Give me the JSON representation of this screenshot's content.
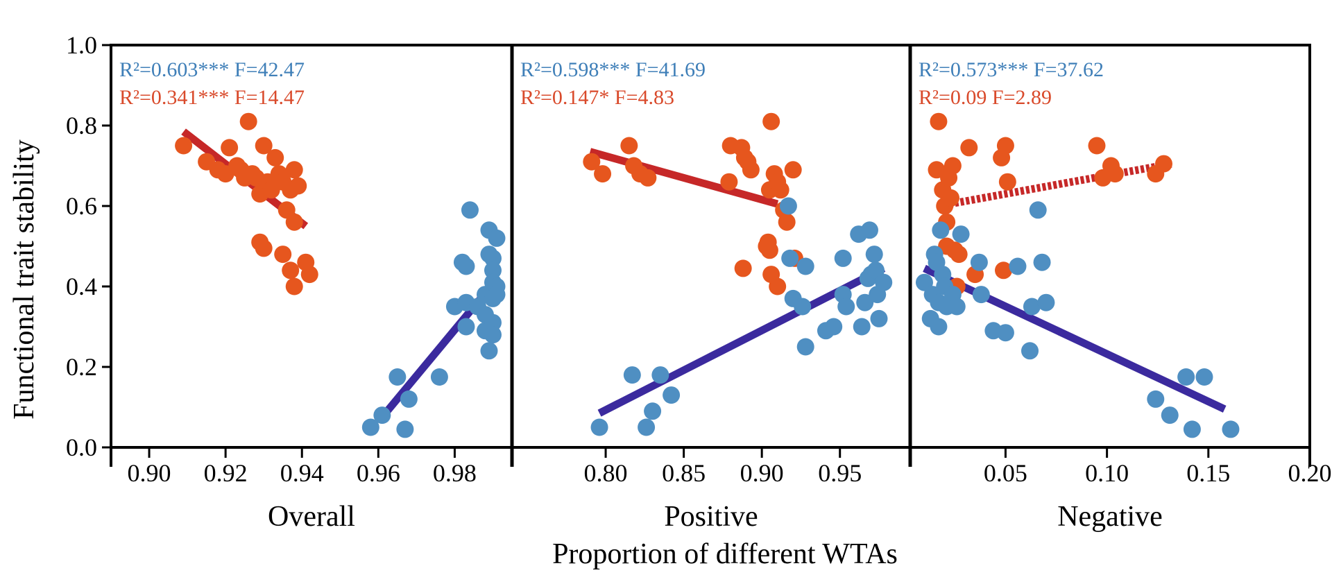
{
  "chart_data": {
    "type": "scatter",
    "ylabel": "Functional trait stability",
    "xlabel": "Proportion of different WTAs",
    "ylim": [
      0,
      1.0
    ],
    "yticks": [
      "0.0",
      "0.2",
      "0.4",
      "0.6",
      "0.8",
      "1.0"
    ],
    "colors": {
      "blue": "#4f8fc2",
      "orange": "#e6561e",
      "blue_line": "#3b2a9e",
      "red_line": "#c62828",
      "blue_text": "#3f7fb8",
      "red_text": "#d94a2b"
    },
    "panels": [
      {
        "name": "Overall",
        "xlim": [
          0.89,
          0.995
        ],
        "xticks": [
          "0.90",
          "0.92",
          "0.94",
          "0.96",
          "0.98"
        ],
        "xtick_values": [
          0.9,
          0.92,
          0.94,
          0.96,
          0.98
        ],
        "stats": {
          "blue": "R²=0.603*** F=42.47",
          "red": "R²=0.341*** F=14.47"
        },
        "orange_points": [
          [
            0.909,
            0.75
          ],
          [
            0.915,
            0.71
          ],
          [
            0.918,
            0.69
          ],
          [
            0.92,
            0.68
          ],
          [
            0.921,
            0.745
          ],
          [
            0.923,
            0.7
          ],
          [
            0.924,
            0.69
          ],
          [
            0.925,
            0.67
          ],
          [
            0.926,
            0.81
          ],
          [
            0.927,
            0.68
          ],
          [
            0.928,
            0.67
          ],
          [
            0.929,
            0.63
          ],
          [
            0.93,
            0.75
          ],
          [
            0.931,
            0.66
          ],
          [
            0.932,
            0.64
          ],
          [
            0.933,
            0.72
          ],
          [
            0.934,
            0.68
          ],
          [
            0.935,
            0.66
          ],
          [
            0.936,
            0.59
          ],
          [
            0.937,
            0.64
          ],
          [
            0.938,
            0.69
          ],
          [
            0.939,
            0.65
          ],
          [
            0.938,
            0.56
          ],
          [
            0.929,
            0.51
          ],
          [
            0.93,
            0.495
          ],
          [
            0.935,
            0.48
          ],
          [
            0.937,
            0.44
          ],
          [
            0.938,
            0.4
          ],
          [
            0.941,
            0.46
          ],
          [
            0.942,
            0.43
          ]
        ],
        "blue_points": [
          [
            0.958,
            0.05
          ],
          [
            0.961,
            0.08
          ],
          [
            0.965,
            0.175
          ],
          [
            0.967,
            0.045
          ],
          [
            0.968,
            0.12
          ],
          [
            0.976,
            0.175
          ],
          [
            0.98,
            0.35
          ],
          [
            0.982,
            0.46
          ],
          [
            0.983,
            0.45
          ],
          [
            0.983,
            0.36
          ],
          [
            0.983,
            0.3
          ],
          [
            0.984,
            0.59
          ],
          [
            0.986,
            0.35
          ],
          [
            0.988,
            0.38
          ],
          [
            0.988,
            0.33
          ],
          [
            0.988,
            0.29
          ],
          [
            0.989,
            0.54
          ],
          [
            0.989,
            0.48
          ],
          [
            0.989,
            0.24
          ],
          [
            0.99,
            0.47
          ],
          [
            0.99,
            0.44
          ],
          [
            0.99,
            0.41
          ],
          [
            0.99,
            0.37
          ],
          [
            0.99,
            0.31
          ],
          [
            0.99,
            0.28
          ],
          [
            0.991,
            0.52
          ],
          [
            0.991,
            0.4
          ],
          [
            0.991,
            0.38
          ]
        ],
        "fits": [
          {
            "series": "red",
            "x": [
              0.909,
              0.941
            ],
            "y": [
              0.785,
              0.55
            ],
            "style": "solid"
          },
          {
            "series": "blue",
            "x": [
              0.961,
              0.989
            ],
            "y": [
              0.075,
              0.395
            ],
            "style": "solid"
          }
        ]
      },
      {
        "name": "Positive",
        "xlim": [
          0.74,
          0.995
        ],
        "xticks": [
          "0.80",
          "0.85",
          "0.90",
          "0.95"
        ],
        "xtick_values": [
          0.8,
          0.85,
          0.9,
          0.95
        ],
        "stats": {
          "blue": "R²=0.598*** F=41.69",
          "red": "R²=0.147* F=4.83"
        },
        "orange_points": [
          [
            0.791,
            0.71
          ],
          [
            0.798,
            0.68
          ],
          [
            0.815,
            0.75
          ],
          [
            0.818,
            0.7
          ],
          [
            0.822,
            0.68
          ],
          [
            0.827,
            0.67
          ],
          [
            0.879,
            0.66
          ],
          [
            0.88,
            0.75
          ],
          [
            0.887,
            0.745
          ],
          [
            0.889,
            0.72
          ],
          [
            0.891,
            0.71
          ],
          [
            0.893,
            0.69
          ],
          [
            0.905,
            0.64
          ],
          [
            0.906,
            0.81
          ],
          [
            0.908,
            0.68
          ],
          [
            0.91,
            0.66
          ],
          [
            0.912,
            0.64
          ],
          [
            0.914,
            0.59
          ],
          [
            0.916,
            0.56
          ],
          [
            0.92,
            0.69
          ],
          [
            0.888,
            0.445
          ],
          [
            0.903,
            0.5
          ],
          [
            0.905,
            0.49
          ],
          [
            0.906,
            0.43
          ],
          [
            0.91,
            0.4
          ],
          [
            0.921,
            0.47
          ],
          [
            0.904,
            0.51
          ]
        ],
        "blue_points": [
          [
            0.796,
            0.05
          ],
          [
            0.817,
            0.18
          ],
          [
            0.826,
            0.05
          ],
          [
            0.83,
            0.09
          ],
          [
            0.835,
            0.18
          ],
          [
            0.842,
            0.13
          ],
          [
            0.917,
            0.6
          ],
          [
            0.918,
            0.47
          ],
          [
            0.92,
            0.37
          ],
          [
            0.926,
            0.35
          ],
          [
            0.928,
            0.45
          ],
          [
            0.928,
            0.25
          ],
          [
            0.941,
            0.29
          ],
          [
            0.946,
            0.3
          ],
          [
            0.952,
            0.47
          ],
          [
            0.952,
            0.38
          ],
          [
            0.954,
            0.35
          ],
          [
            0.962,
            0.53
          ],
          [
            0.964,
            0.3
          ],
          [
            0.966,
            0.36
          ],
          [
            0.968,
            0.42
          ],
          [
            0.969,
            0.54
          ],
          [
            0.97,
            0.43
          ],
          [
            0.972,
            0.48
          ],
          [
            0.973,
            0.44
          ],
          [
            0.974,
            0.38
          ],
          [
            0.975,
            0.32
          ],
          [
            0.978,
            0.41
          ]
        ],
        "fits": [
          {
            "series": "red",
            "x": [
              0.79,
              0.91
            ],
            "y": [
              0.735,
              0.605
            ],
            "style": "solid"
          },
          {
            "series": "blue",
            "x": [
              0.796,
              0.978
            ],
            "y": [
              0.085,
              0.445
            ],
            "style": "solid"
          }
        ]
      },
      {
        "name": "Negative",
        "xlim": [
          0.003,
          0.2
        ],
        "xticks": [
          "0.05",
          "0.10",
          "0.15",
          "0.20"
        ],
        "xtick_values": [
          0.05,
          0.1,
          0.15,
          0.2
        ],
        "stats": {
          "blue": "R²=0.573*** F=37.62",
          "red": "R²=0.09 F=2.89"
        },
        "orange_points": [
          [
            0.016,
            0.69
          ],
          [
            0.017,
            0.81
          ],
          [
            0.019,
            0.64
          ],
          [
            0.02,
            0.6
          ],
          [
            0.021,
            0.56
          ],
          [
            0.021,
            0.5
          ],
          [
            0.022,
            0.67
          ],
          [
            0.023,
            0.62
          ],
          [
            0.024,
            0.7
          ],
          [
            0.025,
            0.49
          ],
          [
            0.026,
            0.4
          ],
          [
            0.027,
            0.48
          ],
          [
            0.032,
            0.745
          ],
          [
            0.035,
            0.43
          ],
          [
            0.048,
            0.72
          ],
          [
            0.05,
            0.75
          ],
          [
            0.051,
            0.66
          ],
          [
            0.049,
            0.44
          ],
          [
            0.095,
            0.75
          ],
          [
            0.098,
            0.67
          ],
          [
            0.102,
            0.7
          ],
          [
            0.104,
            0.68
          ],
          [
            0.124,
            0.68
          ],
          [
            0.128,
            0.705
          ]
        ],
        "blue_points": [
          [
            0.01,
            0.41
          ],
          [
            0.013,
            0.32
          ],
          [
            0.014,
            0.38
          ],
          [
            0.015,
            0.48
          ],
          [
            0.016,
            0.46
          ],
          [
            0.017,
            0.36
          ],
          [
            0.017,
            0.3
          ],
          [
            0.018,
            0.54
          ],
          [
            0.019,
            0.43
          ],
          [
            0.02,
            0.4
          ],
          [
            0.021,
            0.35
          ],
          [
            0.024,
            0.38
          ],
          [
            0.026,
            0.35
          ],
          [
            0.028,
            0.53
          ],
          [
            0.037,
            0.46
          ],
          [
            0.038,
            0.38
          ],
          [
            0.044,
            0.29
          ],
          [
            0.05,
            0.285
          ],
          [
            0.056,
            0.45
          ],
          [
            0.062,
            0.24
          ],
          [
            0.063,
            0.35
          ],
          [
            0.066,
            0.59
          ],
          [
            0.068,
            0.46
          ],
          [
            0.07,
            0.36
          ],
          [
            0.124,
            0.12
          ],
          [
            0.131,
            0.08
          ],
          [
            0.139,
            0.175
          ],
          [
            0.142,
            0.045
          ],
          [
            0.148,
            0.175
          ],
          [
            0.161,
            0.045
          ]
        ],
        "fits": [
          {
            "series": "red",
            "x": [
              0.017,
              0.132
            ],
            "y": [
              0.6,
              0.705
            ],
            "style": "dotted"
          },
          {
            "series": "blue",
            "x": [
              0.01,
              0.158
            ],
            "y": [
              0.445,
              0.095
            ],
            "style": "solid"
          }
        ]
      }
    ]
  }
}
